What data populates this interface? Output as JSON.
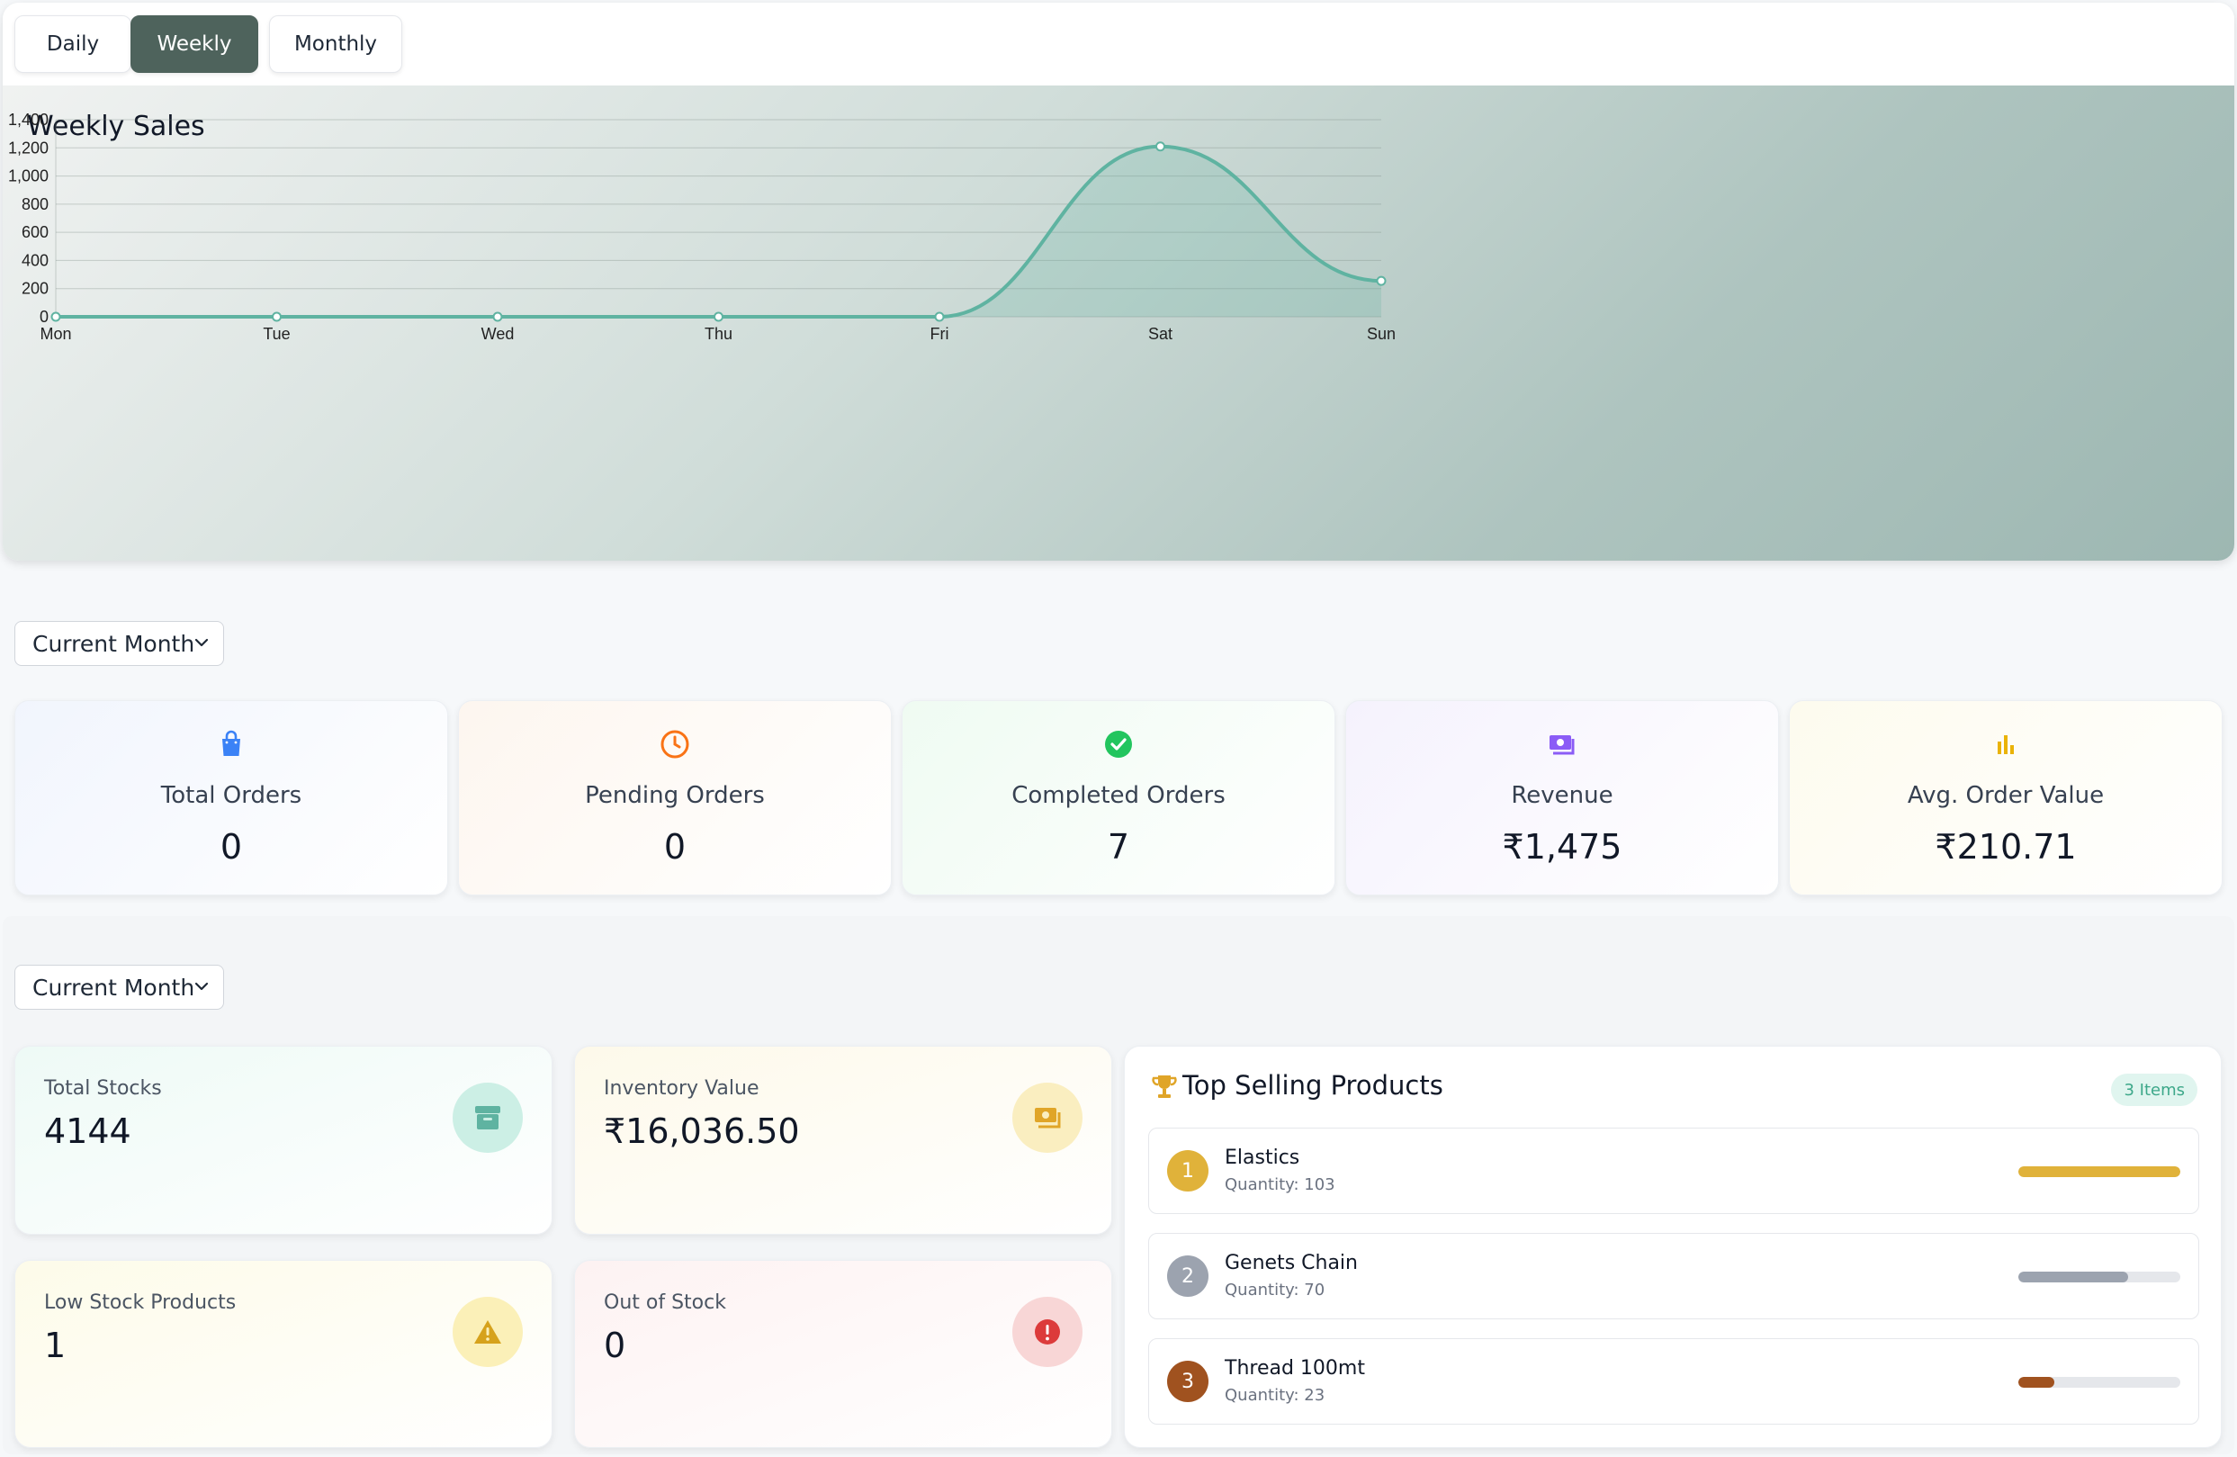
{
  "tabs": [
    {
      "label": "Daily",
      "active": false
    },
    {
      "label": "Weekly",
      "active": true
    },
    {
      "label": "Monthly",
      "active": false
    }
  ],
  "chart": {
    "title": "Weekly Sales"
  },
  "chart_data": {
    "type": "area",
    "title": "Weekly Sales",
    "categories": [
      "Mon",
      "Tue",
      "Wed",
      "Thu",
      "Fri",
      "Sat",
      "Sun"
    ],
    "values": [
      0,
      0,
      0,
      0,
      0,
      1210,
      255
    ],
    "ylim": [
      0,
      1400
    ],
    "yticks": [
      0,
      200,
      400,
      600,
      800,
      "1,000",
      "1,200",
      "1,400"
    ],
    "yticks_values": [
      0,
      200,
      400,
      600,
      800,
      1000,
      1200,
      1400
    ],
    "grid": true,
    "line_color": "#5fb3a1"
  },
  "orders_filter": {
    "selected": "Current Month"
  },
  "order_stats": [
    {
      "label": "Total Orders",
      "value": "0",
      "icon": "shopping-bag-icon",
      "color": "#3b82f6"
    },
    {
      "label": "Pending Orders",
      "value": "0",
      "icon": "clock-icon",
      "color": "#f97316"
    },
    {
      "label": "Completed Orders",
      "value": "7",
      "icon": "check-circle-icon",
      "color": "#22c55e"
    },
    {
      "label": "Revenue",
      "value": "₹1,475",
      "icon": "money-icon",
      "color": "#8b5cf6"
    },
    {
      "label": "Avg. Order Value",
      "value": "₹210.71",
      "icon": "bar-chart-icon",
      "color": "#eab308"
    }
  ],
  "inventory_filter": {
    "selected": "Current Month"
  },
  "inventory": [
    {
      "label": "Total Stocks",
      "value": "4144",
      "icon": "archive-icon",
      "color": "#5fb3a1"
    },
    {
      "label": "Inventory Value",
      "value": "₹16,036.50",
      "icon": "money-icon",
      "color": "#e0a528"
    },
    {
      "label": "Low Stock Products",
      "value": "1",
      "icon": "warning-icon",
      "color": "#e0a528"
    },
    {
      "label": "Out of Stock",
      "value": "0",
      "icon": "alert-circle-icon",
      "color": "#dc3b3b"
    }
  ],
  "top_selling": {
    "title": "Top Selling Products",
    "count_label": "3 Items",
    "items": [
      {
        "rank": "1",
        "name": "Elastics",
        "quantity": "Quantity: 103",
        "share": 1.0,
        "color": "#e0b23a"
      },
      {
        "rank": "2",
        "name": "Genets Chain",
        "quantity": "Quantity: 70",
        "share": 0.68,
        "color": "#9ca3af"
      },
      {
        "rank": "3",
        "name": "Thread 100mt",
        "quantity": "Quantity: 23",
        "share": 0.22,
        "color": "#a0521f"
      }
    ]
  }
}
